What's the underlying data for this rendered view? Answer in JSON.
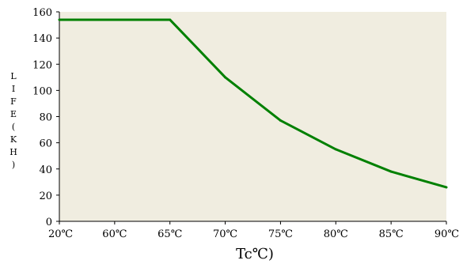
{
  "chart_data": {
    "type": "line",
    "title": "",
    "xlabel": "Tc℃)",
    "ylabel": "LIFE(KH)",
    "categories": [
      "20℃",
      "60℃",
      "65℃",
      "70℃",
      "75℃",
      "80℃",
      "85℃",
      "90℃"
    ],
    "x_ticks": [
      "20℃",
      "60℃",
      "65℃",
      "70℃",
      "75℃",
      "80℃",
      "85℃",
      "90℃"
    ],
    "y_ticks": [
      "0",
      "20",
      "40",
      "60",
      "80",
      "100",
      "120",
      "140",
      "160"
    ],
    "ylim": [
      0,
      160
    ],
    "grid": false,
    "series": [
      {
        "values": [
          154,
          154,
          154,
          110,
          77,
          55,
          38,
          26
        ]
      }
    ],
    "colors": {
      "line": "#008000",
      "plot_background": "#f0ede0",
      "axis": "#000000"
    }
  }
}
